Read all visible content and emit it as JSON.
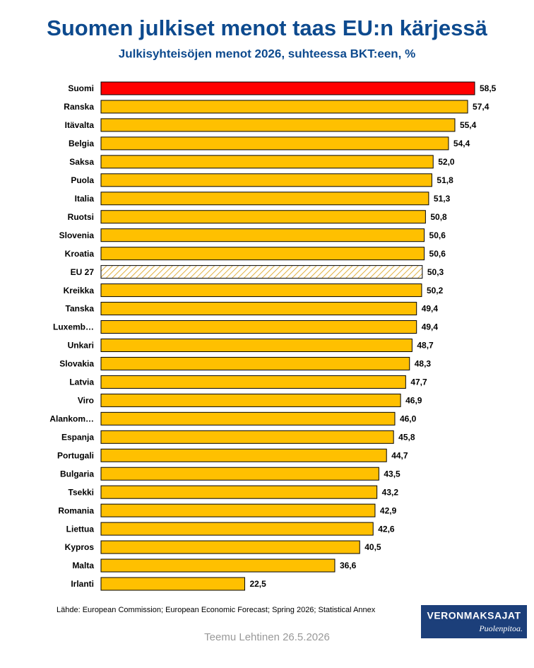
{
  "chart_data": {
    "type": "bar",
    "orientation": "horizontal",
    "title": "Suomen julkiset menot taas EU:n kärjessä",
    "subtitle": "Julkisyhteisöjen menot 2026, suhteessa BKT:een, %",
    "categories": [
      "Suomi",
      "Ranska",
      "Itävalta",
      "Belgia",
      "Saksa",
      "Puola",
      "Italia",
      "Ruotsi",
      "Slovenia",
      "Kroatia",
      "EU 27",
      "Kreikka",
      "Tanska",
      "Luxemb…",
      "Unkari",
      "Slovakia",
      "Latvia",
      "Viro",
      "Alankom…",
      "Espanja",
      "Portugali",
      "Bulgaria",
      "Tsekki",
      "Romania",
      "Liettua",
      "Kypros",
      "Malta",
      "Irlanti"
    ],
    "values": [
      58.5,
      57.4,
      55.4,
      54.4,
      52.0,
      51.8,
      51.3,
      50.8,
      50.6,
      50.6,
      50.3,
      50.2,
      49.4,
      49.4,
      48.7,
      48.3,
      47.7,
      46.9,
      46.0,
      45.8,
      44.7,
      43.5,
      43.2,
      42.9,
      42.6,
      40.5,
      36.6,
      22.5
    ],
    "value_labels": [
      "58,5",
      "57,4",
      "55,4",
      "54,4",
      "52,0",
      "51,8",
      "51,3",
      "50,8",
      "50,6",
      "50,6",
      "50,3",
      "50,2",
      "49,4",
      "49,4",
      "48,7",
      "48,3",
      "47,7",
      "46,9",
      "46,0",
      "45,8",
      "44,7",
      "43,5",
      "43,2",
      "42,9",
      "42,6",
      "40,5",
      "36,6",
      "22,5"
    ],
    "colors": [
      "#ff0000",
      "#ffc000",
      "#ffc000",
      "#ffc000",
      "#ffc000",
      "#ffc000",
      "#ffc000",
      "#ffc000",
      "#ffc000",
      "#ffc000",
      "#ffc000",
      "#ffc000",
      "#ffc000",
      "#ffc000",
      "#ffc000",
      "#ffc000",
      "#ffc000",
      "#ffc000",
      "#ffc000",
      "#ffc000",
      "#ffc000",
      "#ffc000",
      "#ffc000",
      "#ffc000",
      "#ffc000",
      "#ffc000",
      "#ffc000",
      "#ffc000"
    ],
    "hatched": [
      false,
      false,
      false,
      false,
      false,
      false,
      false,
      false,
      false,
      false,
      true,
      false,
      false,
      false,
      false,
      false,
      false,
      false,
      false,
      false,
      false,
      false,
      false,
      false,
      false,
      false,
      false,
      false
    ],
    "source": "Lähde: European Commission; European Economic Forecast; Spring 2026; Statistical Annex",
    "author": "Teemu Lehtinen  26.5.2026",
    "logo": {
      "name": "VERONMAKSAJAT",
      "tagline": "Puolenpitoa."
    }
  }
}
